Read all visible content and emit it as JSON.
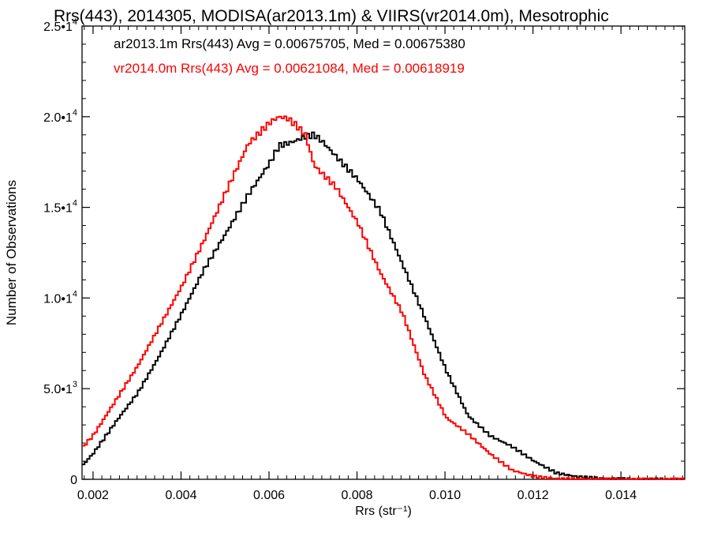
{
  "chart_data": {
    "type": "line",
    "title": "Rrs(443), 2014305, MODISA(ar2013.1m) & VIIRS(vr2014.0m), Mesotrophic",
    "xlabel": "Rrs (str⁻¹)",
    "ylabel": "Number of Observations",
    "xlim": [
      0.00175,
      0.01545
    ],
    "ylim": [
      0,
      25000
    ],
    "x_ticks": [
      0.002,
      0.004,
      0.006,
      0.008,
      0.01,
      0.012,
      0.014
    ],
    "x_tick_labels": [
      "0.002",
      "0.004",
      "0.006",
      "0.008",
      "0.010",
      "0.012",
      "0.014"
    ],
    "y_ticks": [
      0,
      5000,
      10000,
      15000,
      20000,
      25000
    ],
    "y_tick_labels": [
      {
        "mant": "0",
        "exp": ""
      },
      {
        "mant": "5.0•1",
        "exp": "3"
      },
      {
        "mant": "1.0•1",
        "exp": "4"
      },
      {
        "mant": "1.5•1",
        "exp": "4"
      },
      {
        "mant": "2.0•1",
        "exp": "4"
      },
      {
        "mant": "2.5•1",
        "exp": "4"
      }
    ],
    "grid": false,
    "legend_position": "top-left",
    "series": [
      {
        "name": "ar2013.1m Rrs(443) Avg = 0.00675705, Med = 0.00675380",
        "color": "#000000",
        "x": [
          0.00175,
          0.002,
          0.0025,
          0.003,
          0.0035,
          0.004,
          0.0045,
          0.005,
          0.0055,
          0.006,
          0.0062,
          0.0065,
          0.0068,
          0.007,
          0.0072,
          0.0075,
          0.008,
          0.0085,
          0.009,
          0.0095,
          0.01,
          0.0105,
          0.011,
          0.0115,
          0.012,
          0.0125,
          0.013,
          0.0135,
          0.014,
          0.0145,
          0.015,
          0.01545
        ],
        "y": [
          800,
          1500,
          3200,
          4800,
          6900,
          9200,
          11600,
          13600,
          15700,
          17500,
          18400,
          18600,
          18900,
          19000,
          18600,
          17800,
          16500,
          14800,
          11900,
          9000,
          6000,
          3500,
          2400,
          1800,
          1000,
          350,
          140,
          50,
          15,
          5,
          2,
          0
        ]
      },
      {
        "name": "vr2014.0m Rrs(443) Avg = 0.00621084, Med = 0.00618919",
        "color": "#ff0000",
        "x": [
          0.00175,
          0.002,
          0.0025,
          0.003,
          0.0035,
          0.004,
          0.0045,
          0.005,
          0.0055,
          0.006,
          0.0062,
          0.0064,
          0.0066,
          0.0068,
          0.007,
          0.0075,
          0.008,
          0.0085,
          0.009,
          0.0095,
          0.01,
          0.0105,
          0.011,
          0.0115,
          0.012,
          0.0125,
          0.013,
          0.0135,
          0.014,
          0.0145,
          0.015,
          0.01545
        ],
        "y": [
          1800,
          2500,
          4400,
          6300,
          8500,
          10700,
          13200,
          15900,
          18500,
          19700,
          20000,
          19900,
          19500,
          19000,
          17300,
          16100,
          14100,
          11400,
          9200,
          5800,
          3400,
          2500,
          1400,
          500,
          150,
          40,
          10,
          3,
          1,
          0,
          0,
          0
        ]
      }
    ]
  }
}
